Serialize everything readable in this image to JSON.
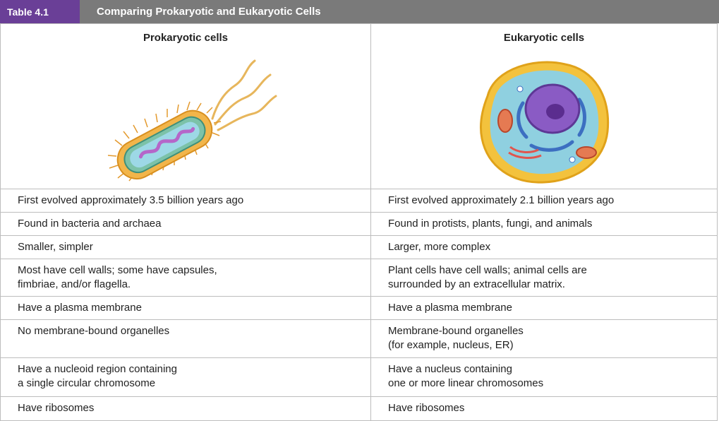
{
  "header": {
    "tag": "Table 4.1",
    "title": "Comparing Prokaryotic and Eukaryotic Cells"
  },
  "columns": {
    "prokaryotic": "Prokaryotic cells",
    "eukaryotic": "Eukaryotic cells"
  },
  "rows": [
    {
      "prokaryotic": [
        "First evolved approximately 3.5 billion years ago"
      ],
      "eukaryotic": [
        "First evolved approximately 2.1 billion years ago"
      ]
    },
    {
      "prokaryotic": [
        "Found in bacteria and archaea"
      ],
      "eukaryotic": [
        "Found in protists, plants, fungi, and animals"
      ]
    },
    {
      "prokaryotic": [
        "Smaller, simpler"
      ],
      "eukaryotic": [
        "Larger, more complex"
      ]
    },
    {
      "prokaryotic": [
        "Most have cell walls; some have capsules,",
        "fimbriae, and/or flagella."
      ],
      "eukaryotic": [
        "Plant cells have cell walls; animal cells are",
        "surrounded by an extracellular matrix."
      ]
    },
    {
      "prokaryotic": [
        "Have a plasma membrane"
      ],
      "eukaryotic": [
        "Have a plasma membrane"
      ]
    },
    {
      "prokaryotic": [
        "No membrane-bound organelles"
      ],
      "eukaryotic": [
        "Membrane-bound organelles",
        "(for example, nucleus, ER)"
      ]
    },
    {
      "prokaryotic": [
        "Have a nucleoid region containing",
        "a single circular chromosome"
      ],
      "eukaryotic": [
        "Have a nucleus containing",
        "one or more linear chromosomes"
      ]
    },
    {
      "prokaryotic": [
        "Have ribosomes"
      ],
      "eukaryotic": [
        "Have ribosomes"
      ]
    }
  ],
  "colors": {
    "tag_bg": "#6a3f97",
    "header_bg": "#7a7a7a",
    "border": "#bdbdbd"
  }
}
